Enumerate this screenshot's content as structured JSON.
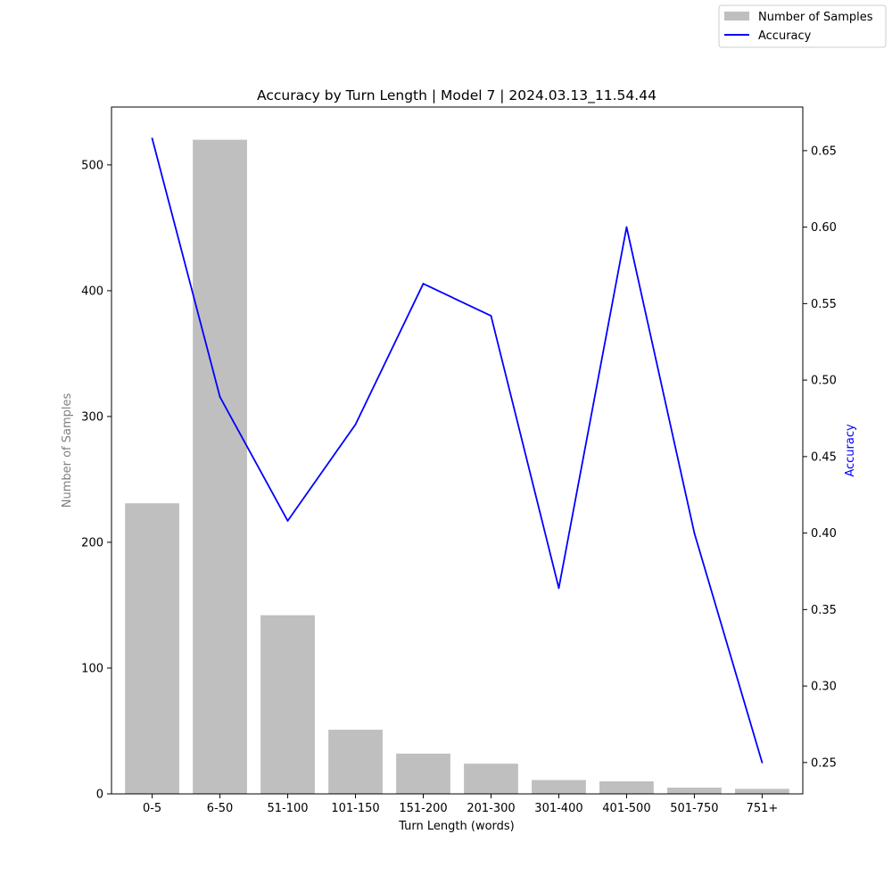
{
  "chart_data": {
    "type": "bar",
    "title": "Accuracy by Turn Length | Model 7 | 2024.03.13_11.54.44",
    "xlabel": "Turn Length (words)",
    "ylabel": "Number of Samples",
    "y2label": "Accuracy",
    "categories": [
      "0-5",
      "6-50",
      "51-100",
      "101-150",
      "151-200",
      "201-300",
      "301-400",
      "401-500",
      "501-750",
      "751+"
    ],
    "series": [
      {
        "name": "Number of Samples",
        "kind": "bar",
        "axis": "left",
        "color": "#bfbfbf",
        "values": [
          231,
          520,
          142,
          51,
          32,
          24,
          11,
          10,
          5,
          4
        ]
      },
      {
        "name": "Accuracy",
        "kind": "line",
        "axis": "right",
        "color": "#0000ff",
        "values": [
          0.658,
          0.489,
          0.408,
          0.471,
          0.563,
          0.542,
          0.364,
          0.6,
          0.4,
          0.25
        ]
      }
    ],
    "ylim": [
      0,
      546
    ],
    "y2lim": [
      0.2295,
      0.6785
    ],
    "yticks": [
      0,
      100,
      200,
      300,
      400,
      500
    ],
    "y2ticks": [
      "0.25",
      "0.30",
      "0.35",
      "0.40",
      "0.45",
      "0.50",
      "0.55",
      "0.60",
      "0.65"
    ],
    "ylabel_color": "#808080",
    "y2label_color": "#0000ff",
    "grid": false,
    "legend_placement": "top-right (outside)"
  }
}
